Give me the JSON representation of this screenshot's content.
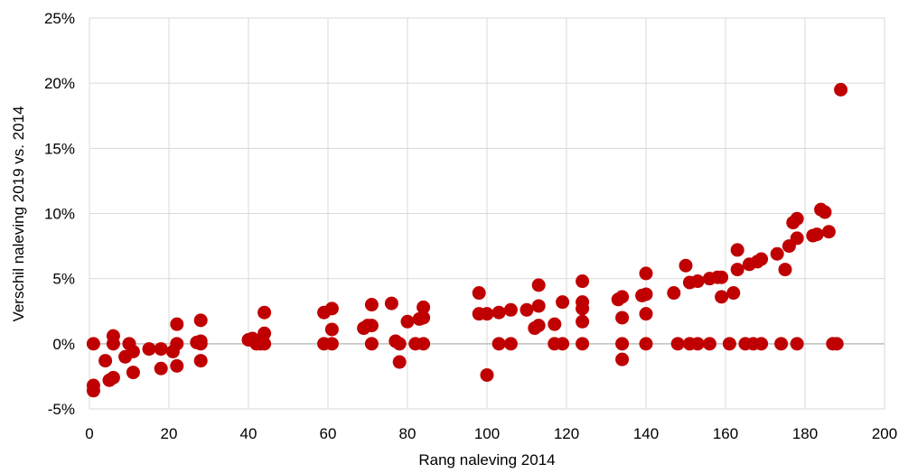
{
  "chart_data": {
    "type": "scatter",
    "xlabel": "Rang naleving 2014",
    "ylabel": "Verschil naleving 2019 vs. 2014",
    "xlim": [
      0,
      200
    ],
    "ylim": [
      -5,
      25
    ],
    "x_ticks": [
      0,
      20,
      40,
      60,
      80,
      100,
      120,
      140,
      160,
      180,
      200
    ],
    "y_ticks": [
      -5,
      0,
      5,
      10,
      15,
      20,
      25
    ],
    "x_tick_labels": [
      "0",
      "20",
      "40",
      "60",
      "80",
      "100",
      "120",
      "140",
      "160",
      "180",
      "200"
    ],
    "y_tick_labels": [
      "-5%",
      "0%",
      "5%",
      "10%",
      "15%",
      "20%",
      "25%"
    ],
    "grid": true,
    "legend": "none",
    "color": "#C00000",
    "series": [
      {
        "points": [
          [
            1,
            0
          ],
          [
            1,
            -3.2
          ],
          [
            1,
            -3.6
          ],
          [
            4,
            -1.3
          ],
          [
            5,
            -2.8
          ],
          [
            6,
            0
          ],
          [
            6,
            0.6
          ],
          [
            6,
            -2.6
          ],
          [
            9,
            -1.0
          ],
          [
            10,
            0
          ],
          [
            11,
            -0.6
          ],
          [
            11,
            -2.2
          ],
          [
            15,
            -0.4
          ],
          [
            18,
            -0.4
          ],
          [
            18,
            -1.9
          ],
          [
            21,
            -0.6
          ],
          [
            22,
            0
          ],
          [
            22,
            1.5
          ],
          [
            22,
            -1.7
          ],
          [
            27,
            0.1
          ],
          [
            28,
            0
          ],
          [
            28,
            0.2
          ],
          [
            28,
            1.8
          ],
          [
            28,
            -1.3
          ],
          [
            40,
            0.3
          ],
          [
            41,
            0.4
          ],
          [
            42,
            0
          ],
          [
            43,
            0
          ],
          [
            44,
            0
          ],
          [
            44,
            0.8
          ],
          [
            44,
            2.4
          ],
          [
            59,
            0
          ],
          [
            59,
            2.4
          ],
          [
            61,
            0
          ],
          [
            61,
            1.1
          ],
          [
            61,
            2.7
          ],
          [
            69,
            1.2
          ],
          [
            70,
            1.4
          ],
          [
            71,
            0
          ],
          [
            71,
            1.4
          ],
          [
            71,
            3.0
          ],
          [
            76,
            3.1
          ],
          [
            77,
            0.2
          ],
          [
            78,
            0
          ],
          [
            78,
            -1.4
          ],
          [
            80,
            1.7
          ],
          [
            82,
            0
          ],
          [
            83,
            1.9
          ],
          [
            84,
            0
          ],
          [
            84,
            2.0
          ],
          [
            84,
            2.8
          ],
          [
            98,
            2.3
          ],
          [
            98,
            3.9
          ],
          [
            100,
            2.3
          ],
          [
            100,
            -2.4
          ],
          [
            103,
            0
          ],
          [
            103,
            2.4
          ],
          [
            106,
            0
          ],
          [
            106,
            2.6
          ],
          [
            110,
            2.6
          ],
          [
            112,
            1.2
          ],
          [
            113,
            1.4
          ],
          [
            113,
            2.9
          ],
          [
            113,
            4.5
          ],
          [
            117,
            1.5
          ],
          [
            117,
            0
          ],
          [
            119,
            0
          ],
          [
            119,
            3.2
          ],
          [
            124,
            0
          ],
          [
            124,
            1.7
          ],
          [
            124,
            2.7
          ],
          [
            124,
            3.2
          ],
          [
            124,
            4.8
          ],
          [
            133,
            3.4
          ],
          [
            134,
            3.6
          ],
          [
            134,
            2.0
          ],
          [
            134,
            0
          ],
          [
            134,
            -1.2
          ],
          [
            139,
            3.7
          ],
          [
            140,
            3.8
          ],
          [
            140,
            2.3
          ],
          [
            140,
            0
          ],
          [
            140,
            5.4
          ],
          [
            147,
            3.9
          ],
          [
            148,
            0
          ],
          [
            150,
            6.0
          ],
          [
            151,
            0
          ],
          [
            151,
            4.7
          ],
          [
            153,
            4.8
          ],
          [
            153,
            0
          ],
          [
            156,
            0
          ],
          [
            156,
            5.0
          ],
          [
            158,
            5.1
          ],
          [
            159,
            3.6
          ],
          [
            159,
            5.1
          ],
          [
            161,
            0
          ],
          [
            162,
            3.9
          ],
          [
            163,
            5.7
          ],
          [
            163,
            7.2
          ],
          [
            165,
            0
          ],
          [
            166,
            6.1
          ],
          [
            167,
            0
          ],
          [
            168,
            6.3
          ],
          [
            169,
            0
          ],
          [
            169,
            6.5
          ],
          [
            173,
            6.9
          ],
          [
            174,
            0
          ],
          [
            175,
            5.7
          ],
          [
            176,
            7.5
          ],
          [
            177,
            9.3
          ],
          [
            178,
            9.6
          ],
          [
            178,
            8.1
          ],
          [
            178,
            0
          ],
          [
            182,
            8.3
          ],
          [
            183,
            8.4
          ],
          [
            184,
            10.3
          ],
          [
            185,
            10.1
          ],
          [
            186,
            8.6
          ],
          [
            187,
            0
          ],
          [
            188,
            0
          ],
          [
            189,
            19.5
          ]
        ]
      }
    ]
  }
}
